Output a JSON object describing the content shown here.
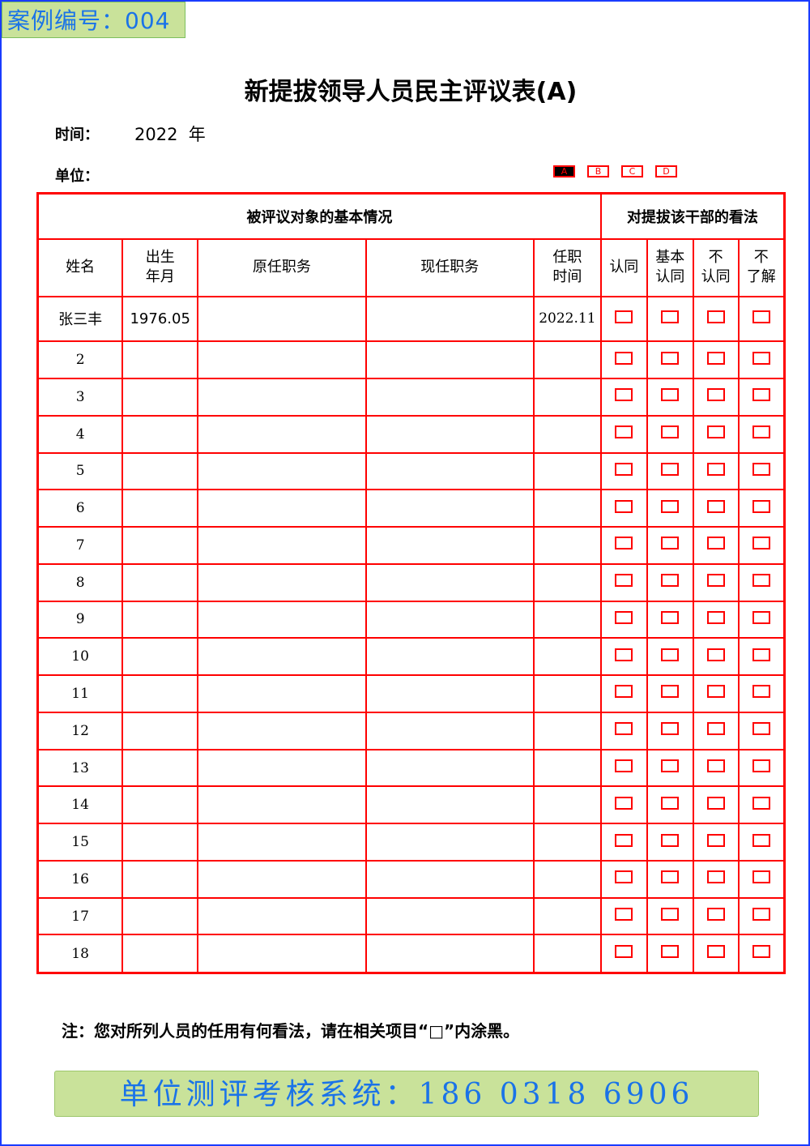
{
  "case_label": "案例编号：004",
  "title": "新提拔领导人员民主评议表(A)",
  "time_label": "时间：",
  "time_value": "2022  年",
  "unit_label": "单位：",
  "form_options": [
    {
      "label": "A",
      "selected": true
    },
    {
      "label": "B",
      "selected": false
    },
    {
      "label": "C",
      "selected": false
    },
    {
      "label": "D",
      "selected": false
    }
  ],
  "table": {
    "group_basic": "被评议对象的基本情况",
    "group_opinion": "对提拔该干部的看法",
    "headers": [
      "姓名",
      "出生\n年月",
      "原任职务",
      "现任职务",
      "任职\n时间",
      "认同",
      "基本\n认同",
      "不\n认同",
      "不\n了解"
    ],
    "rows": [
      {
        "name": "张三丰",
        "birth": "1976.05",
        "prev": "",
        "curr": "",
        "since": "2022.11"
      },
      {
        "name": "2"
      },
      {
        "name": "3"
      },
      {
        "name": "4"
      },
      {
        "name": "5"
      },
      {
        "name": "6"
      },
      {
        "name": "7"
      },
      {
        "name": "8"
      },
      {
        "name": "9"
      },
      {
        "name": "10"
      },
      {
        "name": "11"
      },
      {
        "name": "12"
      },
      {
        "name": "13"
      },
      {
        "name": "14"
      },
      {
        "name": "15"
      },
      {
        "name": "16"
      },
      {
        "name": "17"
      },
      {
        "name": "18"
      }
    ]
  },
  "note": "注：您对所列人员的任用有何看法，请在相关项目“□”内涂黑。",
  "banner": "单位测评考核系统：186 0318 6906",
  "colors": {
    "accent": "#ff0000",
    "banner_bg": "#c9e29a",
    "banner_text": "#1a73e8"
  }
}
